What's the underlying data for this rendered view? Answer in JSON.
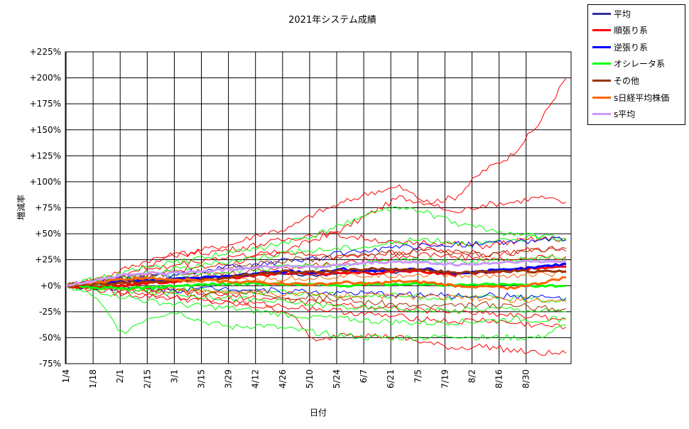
{
  "chart_data": {
    "type": "line",
    "title": "2021年システム成績",
    "xlabel": "日付",
    "ylabel": "増減率",
    "ylim": [
      -75,
      225
    ],
    "yticks": [
      225,
      200,
      175,
      150,
      125,
      100,
      75,
      50,
      25,
      0,
      -25,
      -50,
      -75
    ],
    "ytick_labels": [
      "+225%",
      "+200%",
      "+175%",
      "+150%",
      "+125%",
      "+100%",
      "+75%",
      "+50%",
      "+25%",
      "+0%",
      "-25%",
      "-50%",
      "-75%"
    ],
    "xticks": [
      "1/4",
      "1/18",
      "2/1",
      "2/15",
      "3/1",
      "3/15",
      "3/29",
      "4/12",
      "4/26",
      "5/10",
      "5/24",
      "6/7",
      "6/21",
      "7/5",
      "7/19",
      "8/2",
      "8/16",
      "8/30"
    ],
    "grid": true,
    "legend_position": "right",
    "series": [
      {
        "name": "平均",
        "color": "#333399",
        "width": 2,
        "values": [
          0,
          2,
          5,
          6,
          7,
          8,
          10,
          12,
          11,
          10,
          12,
          14,
          13,
          15,
          12,
          14,
          16,
          18,
          19
        ]
      },
      {
        "name": "順張り系",
        "color": "#ff0000",
        "width": 3,
        "values": [
          0,
          -2,
          0,
          3,
          4,
          6,
          8,
          10,
          12,
          11,
          13,
          12,
          14,
          13,
          11,
          13,
          15,
          17,
          18
        ]
      },
      {
        "name": "逆張り系",
        "color": "#0000ff",
        "width": 3,
        "values": [
          0,
          2,
          4,
          5,
          6,
          8,
          9,
          12,
          14,
          13,
          16,
          14,
          15,
          16,
          12,
          14,
          15,
          18,
          21
        ]
      },
      {
        "name": "オシレータ系",
        "color": "#00ff00",
        "width": 3,
        "values": [
          0,
          -2,
          -3,
          -2,
          0,
          1,
          2,
          2,
          1,
          1,
          0,
          2,
          1,
          2,
          0,
          1,
          1,
          0,
          0
        ]
      },
      {
        "name": "その他",
        "color": "#993300",
        "width": 3,
        "values": [
          0,
          1,
          3,
          4,
          5,
          6,
          8,
          12,
          14,
          13,
          15,
          16,
          16,
          15,
          12,
          13,
          14,
          14,
          14
        ]
      },
      {
        "name": "s日経平均株価",
        "color": "#ff6600",
        "width": 3,
        "values": [
          0,
          3,
          6,
          8,
          6,
          5,
          4,
          3,
          2,
          1,
          3,
          2,
          4,
          3,
          0,
          -1,
          -2,
          2,
          8
        ]
      },
      {
        "name": "s平均",
        "color": "#cc99ff",
        "width": 3,
        "values": [
          0,
          5,
          10,
          12,
          12,
          14,
          16,
          18,
          19,
          18,
          20,
          22,
          23,
          22,
          20,
          21,
          23,
          23,
          23
        ]
      }
    ],
    "background_lines": [
      {
        "color": "#ff0000",
        "values": [
          0,
          2,
          5,
          10,
          15,
          18,
          22,
          28,
          35,
          45,
          55,
          70,
          85,
          80,
          85,
          110,
          125,
          155,
          200
        ]
      },
      {
        "color": "#ff0000",
        "values": [
          0,
          5,
          15,
          25,
          30,
          35,
          40,
          50,
          55,
          70,
          80,
          90,
          95,
          80,
          70,
          78,
          80,
          85,
          80
        ]
      },
      {
        "color": "#ff0000",
        "values": [
          0,
          -3,
          -8,
          -10,
          -12,
          -15,
          -18,
          -20,
          -25,
          -55,
          -45,
          -48,
          -50,
          -55,
          -60,
          -58,
          -62,
          -65,
          -65
        ]
      },
      {
        "color": "#ff0000",
        "values": [
          0,
          3,
          10,
          20,
          30,
          32,
          35,
          40,
          45,
          50,
          48,
          45,
          40,
          42,
          40,
          38,
          42,
          45,
          45
        ]
      },
      {
        "color": "#ff0000",
        "values": [
          0,
          -2,
          -5,
          -8,
          -10,
          -12,
          -15,
          -18,
          -20,
          -22,
          -25,
          -28,
          -30,
          -32,
          -35,
          -33,
          -36,
          -38,
          -40
        ]
      },
      {
        "color": "#ff0000",
        "values": [
          0,
          4,
          8,
          15,
          20,
          25,
          28,
          30,
          32,
          30,
          28,
          30,
          32,
          35,
          33,
          30,
          32,
          35,
          33
        ]
      },
      {
        "color": "#ff0000",
        "values": [
          0,
          -1,
          -3,
          -5,
          -6,
          -8,
          -10,
          -12,
          -14,
          -16,
          -18,
          -20,
          -22,
          -24,
          -25,
          -26,
          -28,
          -30,
          -32
        ]
      },
      {
        "color": "#ff0000",
        "values": [
          0,
          2,
          3,
          5,
          8,
          10,
          12,
          15,
          18,
          20,
          22,
          25,
          28,
          30,
          28,
          26,
          25,
          27,
          28
        ]
      },
      {
        "color": "#00ff00",
        "values": [
          0,
          -10,
          -45,
          -30,
          -25,
          -35,
          -40,
          -38,
          -42,
          -45,
          -48,
          -50,
          -50,
          -50,
          -48,
          -50,
          -50,
          -50,
          -38
        ]
      },
      {
        "color": "#00ff00",
        "values": [
          0,
          6,
          12,
          18,
          22,
          28,
          32,
          36,
          42,
          48,
          60,
          70,
          75,
          70,
          60,
          55,
          50,
          48,
          45
        ]
      },
      {
        "color": "#00ff00",
        "values": [
          0,
          3,
          8,
          12,
          16,
          20,
          24,
          28,
          32,
          34,
          36,
          38,
          42,
          45,
          42,
          40,
          44,
          46,
          45
        ]
      },
      {
        "color": "#00ff00",
        "values": [
          0,
          -4,
          -10,
          -15,
          -18,
          -20,
          -22,
          -25,
          -28,
          -30,
          -32,
          -34,
          -35,
          -36,
          -35,
          -34,
          -32,
          -33,
          -32
        ]
      },
      {
        "color": "#00ff00",
        "values": [
          0,
          -2,
          -4,
          -6,
          -8,
          -10,
          -12,
          -14,
          -16,
          -18,
          -20,
          -22,
          -22,
          -24,
          -24,
          -22,
          -22,
          -24,
          -25
        ]
      },
      {
        "color": "#00ff00",
        "values": [
          0,
          2,
          5,
          8,
          10,
          12,
          14,
          16,
          18,
          18,
          20,
          22,
          24,
          25,
          24,
          23,
          24,
          26,
          27
        ]
      },
      {
        "color": "#00ff00",
        "values": [
          0,
          1,
          0,
          -2,
          -3,
          -4,
          -5,
          -6,
          -7,
          -8,
          -9,
          -10,
          -10,
          -11,
          -12,
          -11,
          -12,
          -13,
          -14
        ]
      },
      {
        "color": "#0000ff",
        "values": [
          0,
          3,
          6,
          8,
          12,
          15,
          18,
          20,
          24,
          26,
          32,
          35,
          36,
          38,
          40,
          40,
          42,
          44,
          44
        ]
      },
      {
        "color": "#0000ff",
        "values": [
          0,
          -1,
          -2,
          -3,
          -4,
          -3,
          -2,
          -4,
          -5,
          -6,
          -7,
          -8,
          -8,
          -9,
          -10,
          -9,
          -10,
          -11,
          -12
        ]
      },
      {
        "color": "#993300",
        "values": [
          0,
          4,
          8,
          10,
          12,
          15,
          18,
          22,
          25,
          26,
          28,
          30,
          32,
          34,
          32,
          30,
          32,
          34,
          36
        ]
      },
      {
        "color": "#993300",
        "values": [
          0,
          -2,
          -3,
          -4,
          -5,
          -6,
          -7,
          -8,
          -10,
          -12,
          -14,
          -16,
          -18,
          -20,
          -20,
          -18,
          -19,
          -21,
          -22
        ]
      },
      {
        "color": "#ff6600",
        "values": [
          0,
          1,
          2,
          3,
          4,
          5,
          6,
          6,
          7,
          8,
          9,
          10,
          10,
          11,
          10,
          9,
          10,
          11,
          12
        ]
      },
      {
        "color": "#ff6600",
        "values": [
          0,
          -1,
          -2,
          -3,
          -4,
          -5,
          -6,
          -7,
          -8,
          -9,
          -9,
          -10,
          -10,
          -11,
          -12,
          -12,
          -13,
          -14,
          -15
        ]
      }
    ]
  }
}
